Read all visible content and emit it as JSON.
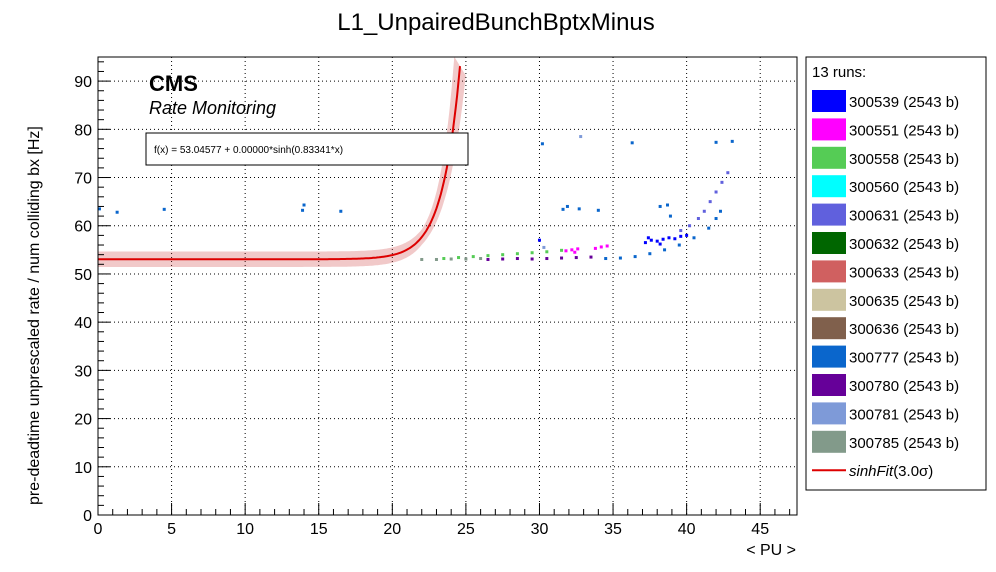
{
  "chart_data": {
    "type": "scatter",
    "title": "L1_UnpairedBunchBptxMinus",
    "xlabel": "< PU >",
    "ylabel": "pre-deadtime unprescaled rate / num colliding bx [Hz]",
    "xlim": [
      0,
      47.5
    ],
    "ylim": [
      0,
      95
    ],
    "x_ticks": [
      0,
      5,
      10,
      15,
      20,
      25,
      30,
      35,
      40,
      45
    ],
    "y_ticks": [
      0,
      10,
      20,
      30,
      40,
      50,
      60,
      70,
      80,
      90
    ],
    "grid": true,
    "cms_label": "CMS",
    "cms_sublabel": "Rate Monitoring",
    "fit_formula": "f(x) = 53.04577 + 0.00000*sinh(0.83341*x)",
    "fit": {
      "a": 53.04577,
      "b": 1e-07,
      "c": 0.83341,
      "color": "#dd0000",
      "band_sigma": 3.0
    },
    "legend": {
      "title": "13 runs:",
      "placement": "right-outside",
      "fit_label": "sinhFit",
      "fit_sigma": "(3.0σ)"
    },
    "series": [
      {
        "name": "300539 (2543 b)",
        "color": "#0000ff",
        "points": [
          [
            37.2,
            56.5
          ],
          [
            37.6,
            57.0
          ],
          [
            38.0,
            56.8
          ],
          [
            38.4,
            57.2
          ],
          [
            38.8,
            57.5
          ],
          [
            39.2,
            57.3
          ],
          [
            39.6,
            57.8
          ],
          [
            40.0,
            58.0
          ],
          [
            37.4,
            57.5
          ],
          [
            38.2,
            56.2
          ],
          [
            30.0,
            57.0
          ]
        ]
      },
      {
        "name": "300551 (2543 b)",
        "color": "#ff00ff",
        "points": [
          [
            31.8,
            54.8
          ],
          [
            32.2,
            55.0
          ],
          [
            32.6,
            55.2
          ],
          [
            33.8,
            55.3
          ],
          [
            34.2,
            55.6
          ],
          [
            34.6,
            55.8
          ],
          [
            32.4,
            54.5
          ]
        ]
      },
      {
        "name": "300558 (2543 b)",
        "color": "#55cc55",
        "points": [
          [
            23.5,
            53.2
          ],
          [
            24.5,
            53.4
          ],
          [
            25.5,
            53.6
          ],
          [
            26.5,
            53.8
          ],
          [
            27.5,
            54.0
          ],
          [
            28.5,
            54.2
          ],
          [
            29.5,
            54.4
          ],
          [
            30.5,
            54.6
          ],
          [
            31.5,
            54.9
          ]
        ]
      },
      {
        "name": "300560 (2543 b)",
        "color": "#00ffff",
        "points": []
      },
      {
        "name": "300631 (2543 b)",
        "color": "#6060dd",
        "points": [
          [
            39.6,
            59.0
          ],
          [
            40.2,
            60.0
          ],
          [
            40.8,
            61.5
          ],
          [
            41.2,
            63.0
          ],
          [
            41.6,
            65.0
          ],
          [
            42.0,
            67.0
          ],
          [
            42.4,
            69.0
          ],
          [
            42.8,
            71.0
          ]
        ]
      },
      {
        "name": "300632 (2543 b)",
        "color": "#006600",
        "points": []
      },
      {
        "name": "300633 (2543 b)",
        "color": "#d06060",
        "points": []
      },
      {
        "name": "300635 (2543 b)",
        "color": "#ccc4a0",
        "points": []
      },
      {
        "name": "300636 (2543 b)",
        "color": "#80604c",
        "points": []
      },
      {
        "name": "300777 (2543 b)",
        "color": "#0a66cc",
        "points": [
          [
            0.1,
            63.5
          ],
          [
            1.3,
            62.8
          ],
          [
            4.5,
            63.4
          ],
          [
            13.9,
            63.2
          ],
          [
            14.0,
            64.3
          ],
          [
            16.5,
            63.0
          ],
          [
            30.2,
            77.0
          ],
          [
            31.6,
            63.4
          ],
          [
            31.9,
            64.0
          ],
          [
            32.7,
            63.5
          ],
          [
            34.0,
            63.2
          ],
          [
            36.3,
            77.2
          ],
          [
            38.2,
            64.0
          ],
          [
            38.7,
            64.3
          ],
          [
            38.9,
            62.0
          ],
          [
            42.0,
            77.3
          ],
          [
            43.1,
            77.5
          ],
          [
            34.5,
            53.2
          ],
          [
            35.5,
            53.3
          ],
          [
            36.5,
            53.6
          ],
          [
            37.5,
            54.2
          ],
          [
            38.5,
            55.0
          ],
          [
            39.5,
            56.0
          ],
          [
            40.5,
            57.5
          ],
          [
            41.5,
            59.5
          ],
          [
            42.0,
            61.5
          ],
          [
            42.3,
            63.0
          ]
        ]
      },
      {
        "name": "300780 (2543 b)",
        "color": "#660099",
        "points": [
          [
            26.5,
            53.0
          ],
          [
            27.5,
            53.1
          ],
          [
            28.5,
            53.2
          ],
          [
            29.5,
            53.1
          ],
          [
            30.5,
            53.2
          ],
          [
            31.5,
            53.3
          ],
          [
            32.5,
            53.4
          ],
          [
            33.5,
            53.5
          ]
        ]
      },
      {
        "name": "300781 (2543 b)",
        "color": "#7e9ad8",
        "points": [
          [
            32.8,
            78.5
          ],
          [
            30.3,
            55.5
          ]
        ]
      },
      {
        "name": "300785 (2543 b)",
        "color": "#829a8a",
        "points": [
          [
            22.0,
            53.0
          ],
          [
            23.0,
            53.0
          ],
          [
            24.0,
            53.1
          ],
          [
            25.0,
            53.1
          ],
          [
            26.0,
            53.2
          ]
        ]
      }
    ]
  }
}
